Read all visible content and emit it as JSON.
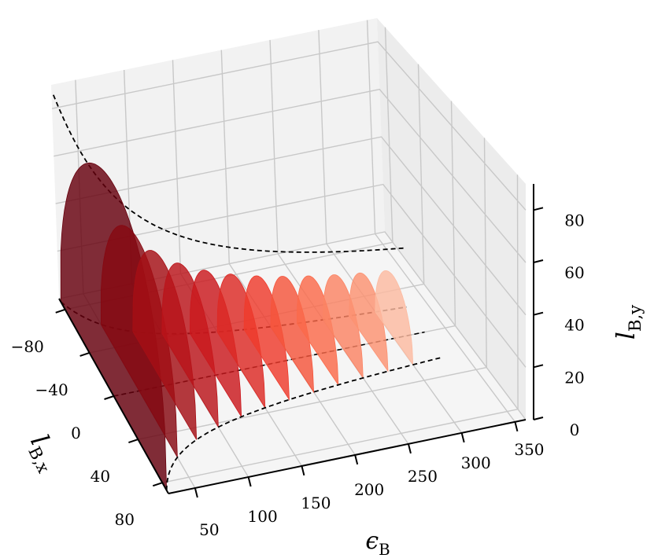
{
  "chart_data": {
    "type": "surface3d",
    "title": "",
    "xlabel": "ϵB",
    "ylabel": "lB,x",
    "zlabel": "lB,y",
    "x_ticks": [
      "50",
      "100",
      "150",
      "200",
      "250",
      "300",
      "350"
    ],
    "y_ticks": [
      "−80",
      "−40",
      "0",
      "40",
      "80"
    ],
    "z_ticks": [
      "0",
      "20",
      "40",
      "60",
      "80"
    ],
    "xlim": [
      25,
      360
    ],
    "ylim": [
      -90,
      90
    ],
    "zlim": [
      0,
      90
    ],
    "colormap": "Reds",
    "grid": true,
    "curve_style": "dashed",
    "series": [
      {
        "epsilon": 25,
        "width": 87.0,
        "height": 87.0
      },
      {
        "epsilon": 50,
        "width": 61.5,
        "height": 61.5
      },
      {
        "epsilon": 75,
        "width": 50.2,
        "height": 50.2
      },
      {
        "epsilon": 100,
        "width": 43.5,
        "height": 43.5
      },
      {
        "epsilon": 125,
        "width": 38.9,
        "height": 38.9
      },
      {
        "epsilon": 150,
        "width": 35.5,
        "height": 35.5
      },
      {
        "epsilon": 175,
        "width": 32.9,
        "height": 32.9
      },
      {
        "epsilon": 200,
        "width": 30.8,
        "height": 30.8
      },
      {
        "epsilon": 225,
        "width": 29.0,
        "height": 29.0
      },
      {
        "epsilon": 250,
        "width": 27.5,
        "height": 27.5
      },
      {
        "epsilon": 275,
        "width": 26.2,
        "height": 26.2
      },
      {
        "epsilon": 300,
        "width": 25.1,
        "height": 25.1
      }
    ],
    "colors": [
      "#67000d",
      "#860811",
      "#a50f15",
      "#bb141a",
      "#cb181d",
      "#dd2a25",
      "#ef3b2c",
      "#f5553c",
      "#fb6a4a",
      "#fb8464",
      "#fc9272",
      "#fcbba1"
    ]
  }
}
